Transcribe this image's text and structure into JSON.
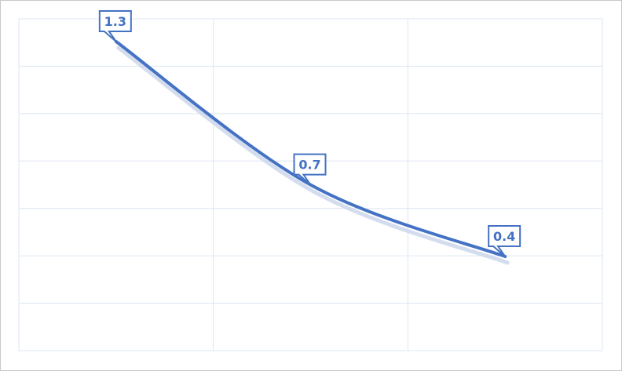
{
  "chart_data": {
    "type": "line",
    "categories": [
      "",
      "",
      ""
    ],
    "values": [
      1.3,
      0.7,
      0.4
    ],
    "data_labels": [
      "1.3",
      "0.7",
      "0.4"
    ],
    "title": "",
    "xlabel": "",
    "ylabel": "",
    "ylim": [
      -0.2,
      1.3
    ],
    "grid": true,
    "legend": "none",
    "colors": {
      "line": "#4472c4",
      "grid": "#dde6f3",
      "border": "#c8c8c8"
    }
  }
}
